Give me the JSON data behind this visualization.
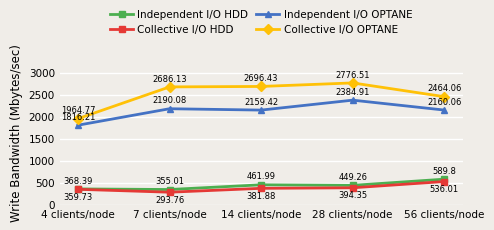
{
  "x_labels": [
    "4 clients/node",
    "7 clients/node",
    "14 clients/node",
    "28 clients/node",
    "56 clients/node"
  ],
  "x_positions": [
    0,
    1,
    2,
    3,
    4
  ],
  "series": [
    {
      "label": "Independent I/O HDD",
      "color": "#4caf50",
      "marker": "s",
      "values": [
        368.39,
        355.01,
        461.99,
        449.26,
        589.8
      ],
      "ann_va": [
        "bottom",
        "bottom",
        "bottom",
        "bottom",
        "bottom"
      ],
      "ann_dy": [
        18,
        18,
        18,
        18,
        18
      ],
      "ann_dx": [
        0,
        0,
        0,
        0,
        0
      ]
    },
    {
      "label": "Independent I/O OPTANE",
      "color": "#4472c4",
      "marker": "^",
      "values": [
        1816.21,
        2190.08,
        2159.42,
        2384.91,
        2160.06
      ],
      "ann_va": [
        "bottom",
        "bottom",
        "bottom",
        "bottom",
        "bottom"
      ],
      "ann_dy": [
        18,
        18,
        18,
        18,
        18
      ],
      "ann_dx": [
        0,
        0,
        0,
        0,
        0
      ]
    },
    {
      "label": "Collective I/O HDD",
      "color": "#e53935",
      "marker": "s",
      "values": [
        359.73,
        293.76,
        381.88,
        394.35,
        536.01
      ],
      "ann_va": [
        "top",
        "top",
        "top",
        "top",
        "top"
      ],
      "ann_dy": [
        -18,
        -18,
        -18,
        -18,
        -18
      ],
      "ann_dx": [
        0,
        0,
        0,
        0,
        0
      ]
    },
    {
      "label": "Collective I/O OPTANE",
      "color": "#ffc107",
      "marker": "D",
      "values": [
        1964.77,
        2686.13,
        2696.43,
        2776.51,
        2464.06
      ],
      "ann_va": [
        "bottom",
        "bottom",
        "bottom",
        "bottom",
        "bottom"
      ],
      "ann_dy": [
        18,
        18,
        18,
        18,
        18
      ],
      "ann_dx": [
        0,
        0,
        0,
        0,
        0
      ]
    }
  ],
  "ylabel": "Write Bandwidth (Mbytes/sec)",
  "ylim": [
    0,
    3300
  ],
  "yticks": [
    0,
    500,
    1000,
    1500,
    2000,
    2500,
    3000
  ],
  "background_color": "#f0ede8",
  "grid_color": "#ffffff",
  "annotation_fontsize": 6.0,
  "legend_fontsize": 7.5,
  "axis_label_fontsize": 8.5,
  "tick_fontsize": 7.5
}
